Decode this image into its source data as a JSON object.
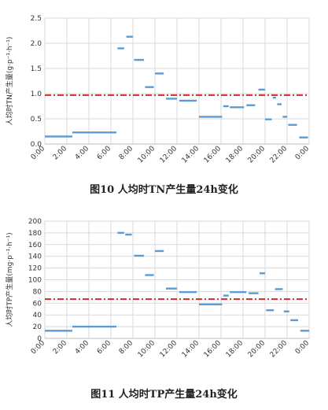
{
  "chart_data": [
    {
      "type": "line",
      "caption": "图10   人均时TN产生量24h变化",
      "ylabel": "人均时TN产生量(g·p⁻¹·h⁻¹)",
      "xlabel": "",
      "y_ticks": [
        "0.0",
        "0.5",
        "1.0",
        "1.5",
        "2.0",
        "2.5"
      ],
      "x_ticks": [
        "0:00",
        "2:00",
        "4:00",
        "6:00",
        "8:00",
        "10:00",
        "12:00",
        "14:00",
        "16:00",
        "18:00",
        "20:00",
        "22:00",
        "0:00"
      ],
      "ylim": [
        0,
        2.5
      ],
      "xlim": [
        0,
        24
      ],
      "grid": true,
      "reference_line": {
        "y": 0.97,
        "style": "dash-dot",
        "color": "#d62728"
      },
      "series_color": "#5b9bd5",
      "segments": [
        {
          "x0": 0.0,
          "x1": 2.5,
          "y": 0.15
        },
        {
          "x0": 2.5,
          "x1": 6.5,
          "y": 0.23
        },
        {
          "x0": 6.6,
          "x1": 7.2,
          "y": 1.9
        },
        {
          "x0": 7.4,
          "x1": 8.0,
          "y": 2.13
        },
        {
          "x0": 8.1,
          "x1": 9.0,
          "y": 1.67
        },
        {
          "x0": 9.1,
          "x1": 9.9,
          "y": 1.13
        },
        {
          "x0": 10.0,
          "x1": 10.8,
          "y": 1.4
        },
        {
          "x0": 11.0,
          "x1": 12.0,
          "y": 0.9
        },
        {
          "x0": 12.2,
          "x1": 13.8,
          "y": 0.86
        },
        {
          "x0": 14.0,
          "x1": 16.1,
          "y": 0.54
        },
        {
          "x0": 16.2,
          "x1": 16.7,
          "y": 0.75
        },
        {
          "x0": 16.8,
          "x1": 18.1,
          "y": 0.73
        },
        {
          "x0": 18.3,
          "x1": 19.1,
          "y": 0.77
        },
        {
          "x0": 19.4,
          "x1": 20.0,
          "y": 1.08
        },
        {
          "x0": 20.0,
          "x1": 20.6,
          "y": 0.49
        },
        {
          "x0": 20.7,
          "x1": 21.0,
          "y": 0.92
        },
        {
          "x0": 21.1,
          "x1": 21.5,
          "y": 0.79
        },
        {
          "x0": 21.6,
          "x1": 22.0,
          "y": 0.54
        },
        {
          "x0": 22.1,
          "x1": 22.9,
          "y": 0.38
        },
        {
          "x0": 23.1,
          "x1": 23.9,
          "y": 0.13
        }
      ]
    },
    {
      "type": "line",
      "caption": "图11  人均时TP产生量24h变化",
      "ylabel": "人均时TP产生量(mg·p⁻¹·h⁻¹)",
      "xlabel": "",
      "y_ticks": [
        "0",
        "20",
        "40",
        "60",
        "80",
        "100",
        "120",
        "140",
        "160",
        "180",
        "200"
      ],
      "x_ticks": [
        "0:00",
        "2:00",
        "4:00",
        "6:00",
        "8:00",
        "10:00",
        "12:00",
        "14:00",
        "16:00",
        "18:00",
        "20:00",
        "22:00",
        "0:00"
      ],
      "ylim": [
        0,
        200
      ],
      "xlim": [
        0,
        24
      ],
      "grid": true,
      "reference_line": {
        "y": 67,
        "style": "dash-dot",
        "color": "#d62728"
      },
      "series_color": "#5b9bd5",
      "segments": [
        {
          "x0": 0.0,
          "x1": 2.5,
          "y": 13
        },
        {
          "x0": 2.5,
          "x1": 6.5,
          "y": 20
        },
        {
          "x0": 6.6,
          "x1": 7.2,
          "y": 180
        },
        {
          "x0": 7.3,
          "x1": 7.9,
          "y": 177
        },
        {
          "x0": 8.1,
          "x1": 9.0,
          "y": 141
        },
        {
          "x0": 9.1,
          "x1": 9.9,
          "y": 108
        },
        {
          "x0": 10.0,
          "x1": 10.8,
          "y": 149
        },
        {
          "x0": 11.0,
          "x1": 12.0,
          "y": 85
        },
        {
          "x0": 12.2,
          "x1": 13.8,
          "y": 79
        },
        {
          "x0": 14.0,
          "x1": 16.1,
          "y": 58
        },
        {
          "x0": 16.2,
          "x1": 16.7,
          "y": 73
        },
        {
          "x0": 16.8,
          "x1": 18.3,
          "y": 79
        },
        {
          "x0": 18.5,
          "x1": 19.4,
          "y": 77
        },
        {
          "x0": 19.5,
          "x1": 20.0,
          "y": 111
        },
        {
          "x0": 20.1,
          "x1": 20.8,
          "y": 48
        },
        {
          "x0": 20.9,
          "x1": 21.6,
          "y": 84
        },
        {
          "x0": 21.7,
          "x1": 22.2,
          "y": 46
        },
        {
          "x0": 22.3,
          "x1": 23.0,
          "y": 31
        },
        {
          "x0": 23.2,
          "x1": 24.0,
          "y": 13
        }
      ]
    }
  ]
}
